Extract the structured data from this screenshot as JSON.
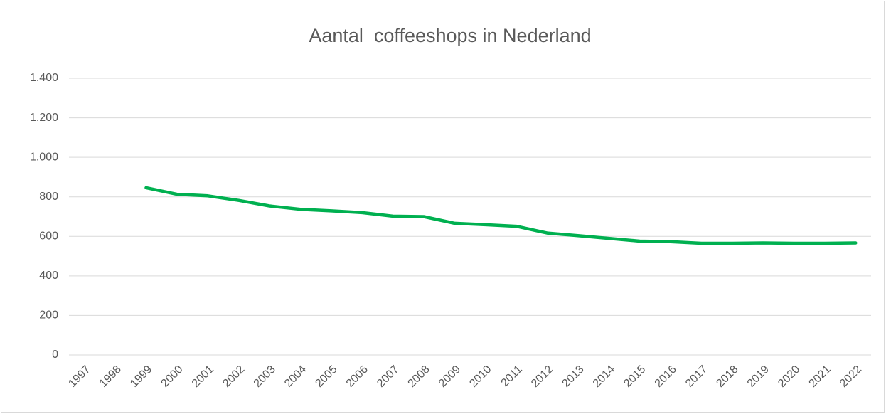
{
  "chart_data": {
    "type": "line",
    "title": "Aantal  coffeeshops in Nederland",
    "categories": [
      "1997",
      "1998",
      "1999",
      "2000",
      "2001",
      "2002",
      "2003",
      "2004",
      "2005",
      "2006",
      "2007",
      "2008",
      "2009",
      "2010",
      "2011",
      "2012",
      "2013",
      "2014",
      "2015",
      "2016",
      "2017",
      "2018",
      "2019",
      "2020",
      "2021",
      "2022"
    ],
    "series": [
      {
        "color": "#00b050",
        "values": [
          null,
          null,
          846,
          813,
          805,
          782,
          754,
          737,
          729,
          720,
          702,
          700,
          666,
          659,
          651,
          617,
          604,
          590,
          576,
          573,
          565,
          565,
          567,
          565,
          565,
          567
        ]
      }
    ],
    "ylim": [
      0,
      1400
    ],
    "yticks": [
      0,
      200,
      400,
      600,
      800,
      {
        "value": 1000,
        "label": "1.000"
      },
      {
        "value": 1200,
        "label": "1.200"
      },
      {
        "value": 1400,
        "label": "1.400"
      }
    ],
    "grid": true
  }
}
